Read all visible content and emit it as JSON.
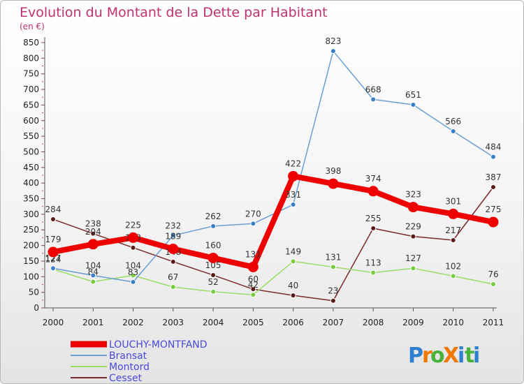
{
  "chart_data": {
    "type": "line",
    "title": "Evolution du Montant de la Dette par Habitant",
    "subtitle": "(en €)",
    "xlabel": "",
    "ylabel": "",
    "categories": [
      "2000",
      "2001",
      "2002",
      "2003",
      "2004",
      "2005",
      "2006",
      "2007",
      "2008",
      "2009",
      "2010",
      "2011"
    ],
    "ylim": [
      0,
      850
    ],
    "yticks": [
      0,
      50,
      100,
      150,
      200,
      250,
      300,
      350,
      400,
      450,
      500,
      550,
      600,
      650,
      700,
      750,
      800,
      850
    ],
    "grid": false,
    "legend_position": "bottom-left",
    "series": [
      {
        "name": "LOUCHY-MONTFAND",
        "color": "#ee0000",
        "width": 8,
        "marker": "#ee0000",
        "values": [
          179,
          204,
          225,
          189,
          160,
          131,
          422,
          398,
          374,
          323,
          301,
          275
        ]
      },
      {
        "name": "Bransat",
        "color": "#6a9fd4",
        "width": 1.5,
        "marker": "#3b7fc8",
        "values": [
          127,
          104,
          83,
          232,
          262,
          270,
          331,
          823,
          668,
          651,
          566,
          484
        ]
      },
      {
        "name": "Montord",
        "color": "#99dd66",
        "width": 1.5,
        "marker": "#77cc44",
        "values": [
          124,
          84,
          104,
          67,
          52,
          42,
          149,
          131,
          113,
          127,
          102,
          76
        ]
      },
      {
        "name": "Cesset",
        "color": "#7a2a2a",
        "width": 1.5,
        "marker": "#5a1a1a",
        "values": [
          284,
          238,
          193,
          148,
          105,
          60,
          40,
          23,
          255,
          229,
          217,
          387
        ]
      }
    ]
  },
  "logo": {
    "text": "ProXiti"
  },
  "colors": {
    "title": "#c03070",
    "axis": "#555555",
    "legend_text": "#4a4adc"
  }
}
